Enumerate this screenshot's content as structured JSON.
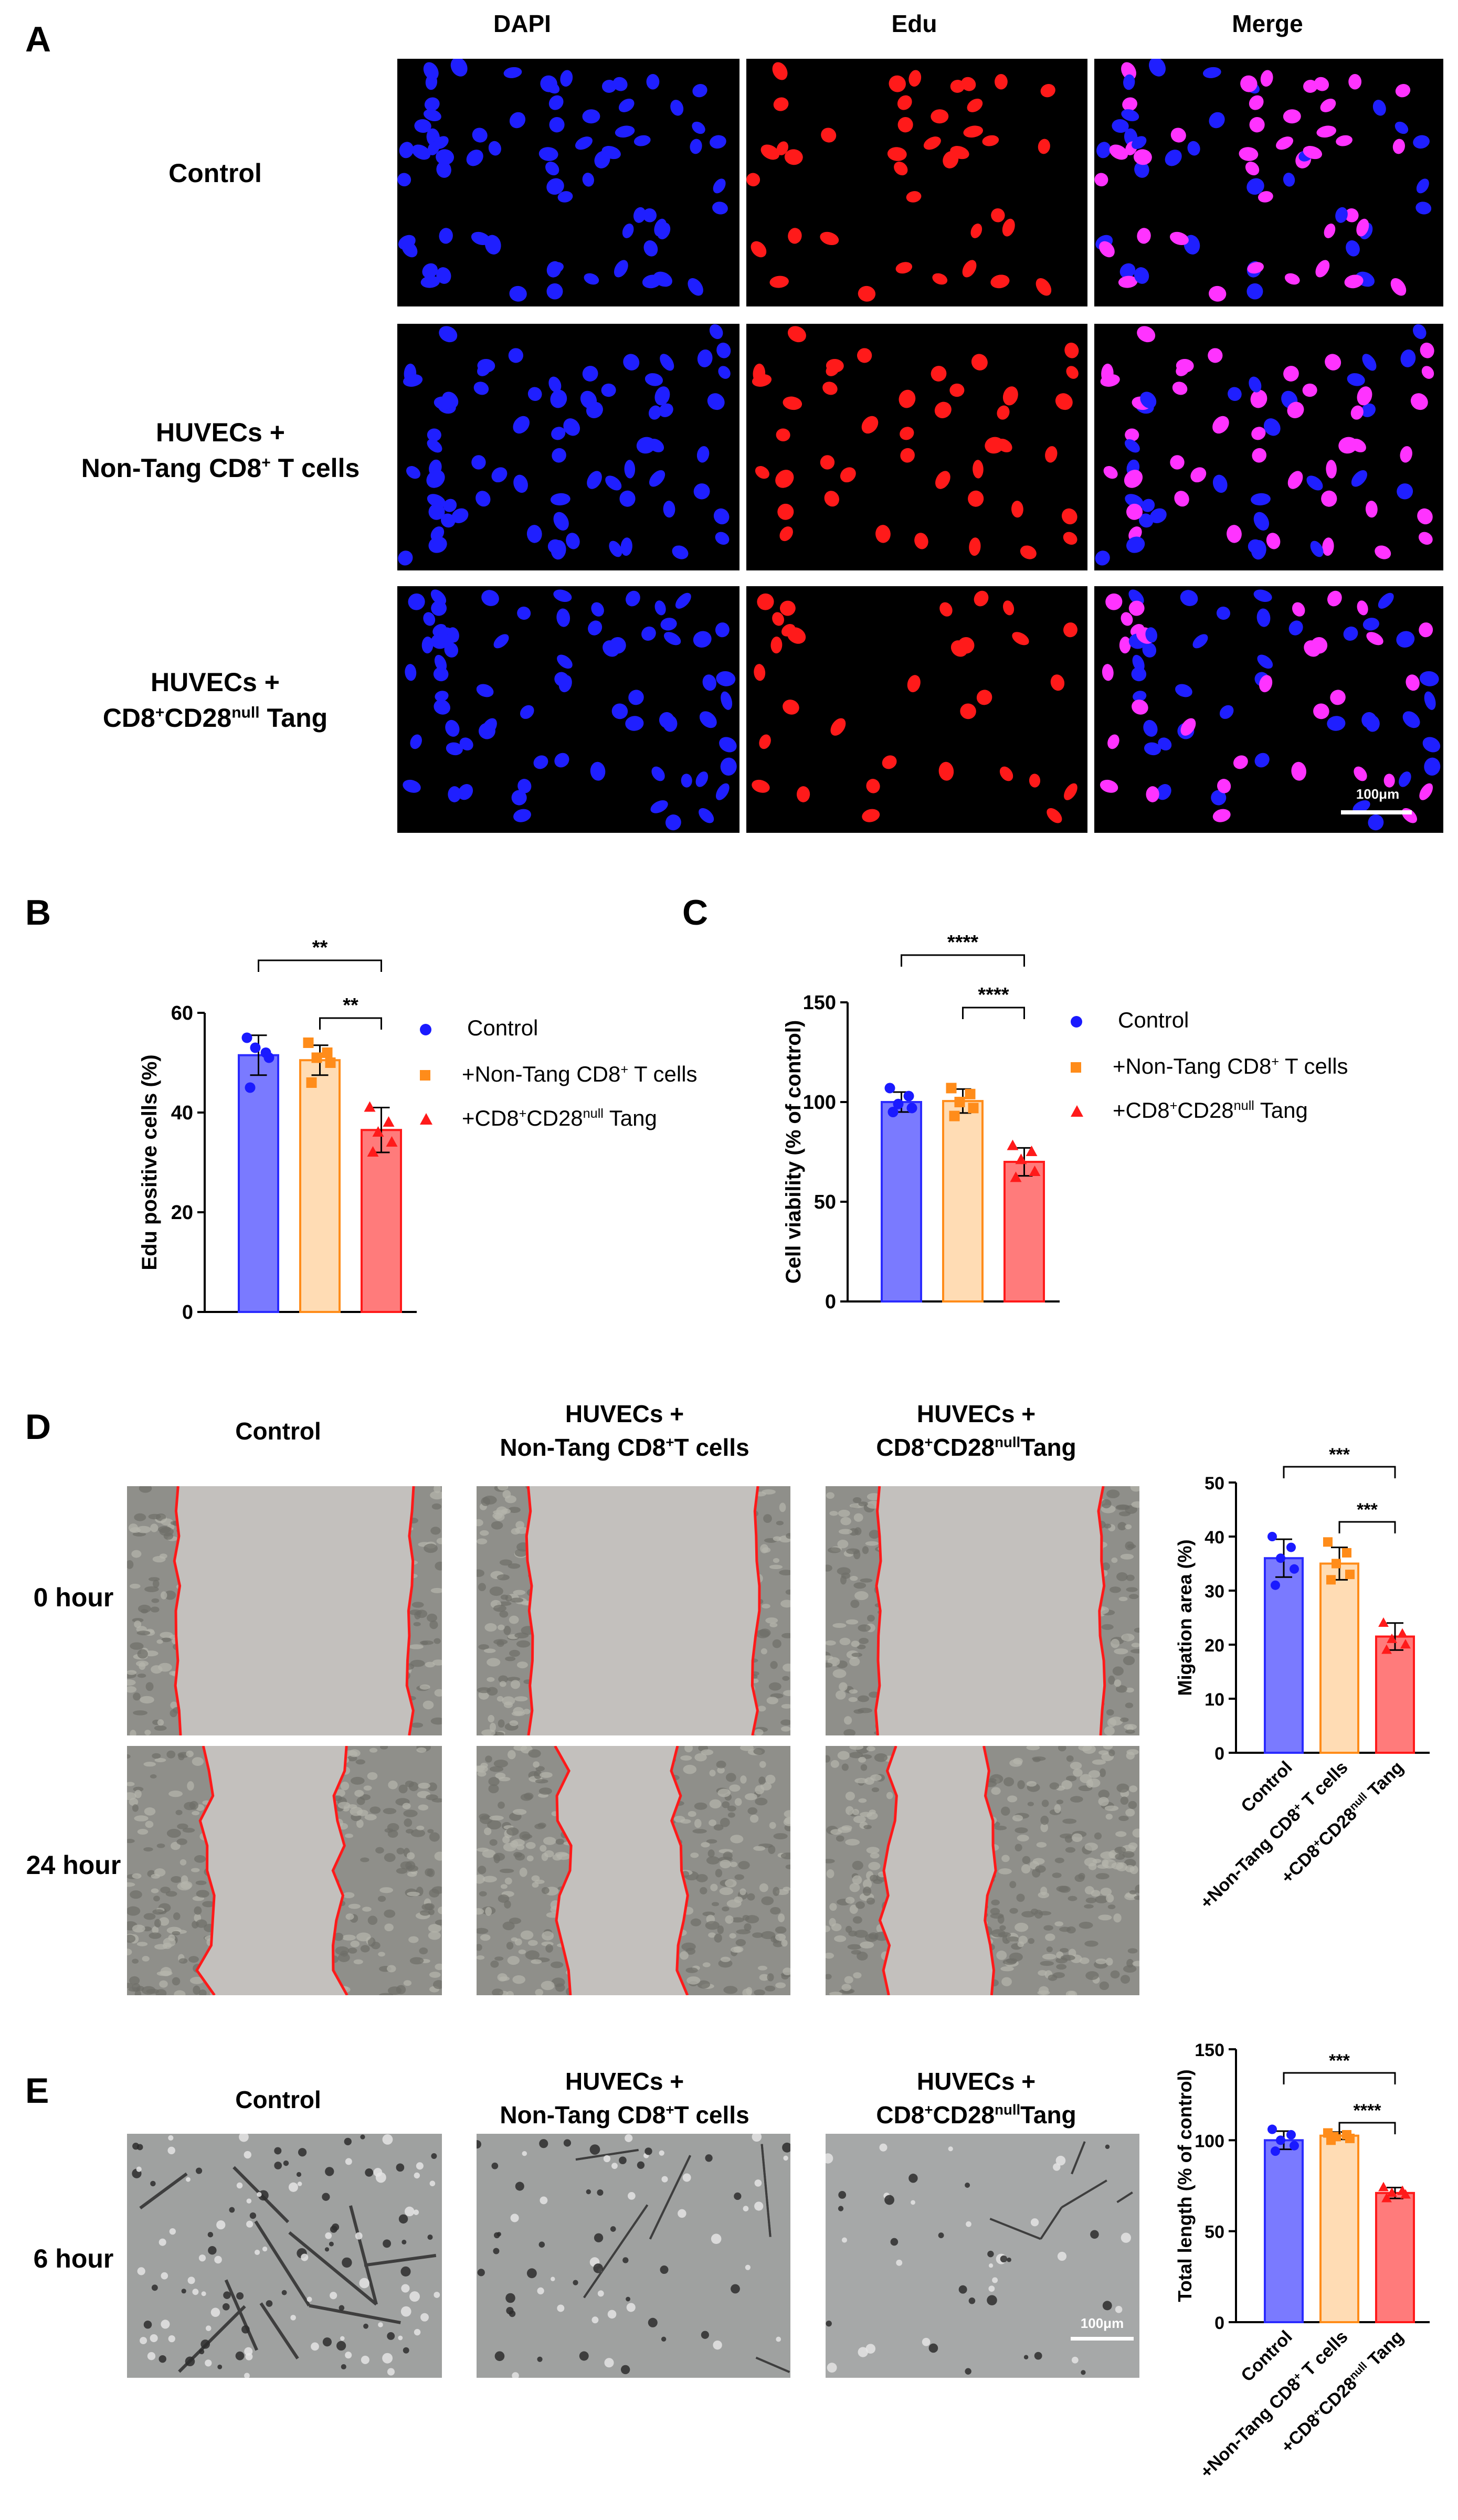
{
  "panels": {
    "A": "A",
    "B": "B",
    "C": "C",
    "D": "D",
    "E": "E"
  },
  "panel_a": {
    "columns": [
      "DAPI",
      "Edu",
      "Merge"
    ],
    "rows": [
      {
        "line1": "Control",
        "line2": ""
      },
      {
        "line1": "HUVECs +",
        "line2_pre": "Non-Tang CD8",
        "line2_sup": "+",
        "line2_post": " T cells"
      },
      {
        "line1": "HUVECs +",
        "line2_pre": "CD8",
        "line2_sup": "+",
        "line2_mid": "CD28",
        "line2_sup2": "null",
        "line2_post": " Tang"
      }
    ],
    "scale_bar": "100μm",
    "colors": {
      "dapi": "#1f1fff",
      "edu": "#ff1a1a",
      "merge": "#ff33ff",
      "background": "#000000"
    }
  },
  "panel_d": {
    "columns": [
      {
        "line1": "Control"
      },
      {
        "line1": "HUVECs +",
        "line2": "Non-Tang CD8+T cells"
      },
      {
        "line1": "HUVECs +",
        "line2": "CD8+CD28nullTang"
      }
    ],
    "col2_line2_pre": "Non-Tang CD8",
    "col2_line2_sup": "+",
    "col2_line2_post": "T cells",
    "col3_line2_pre": "CD8",
    "col3_line2_sup": "+",
    "col3_line2_mid": "CD28",
    "col3_line2_sup2": "null",
    "col3_line2_post": "Tang",
    "rows": [
      "0 hour",
      "24 hour"
    ]
  },
  "panel_e": {
    "row": "6 hour",
    "scale_bar": "100μm"
  },
  "legend": {
    "control": "Control",
    "nontang_pre": "+Non-Tang CD8",
    "nontang_sup": "+",
    "nontang_post": " T cells",
    "tang_pre": "+CD8",
    "tang_sup": "+",
    "tang_mid": "CD28",
    "tang_sup2": "null",
    "tang_post": " Tang"
  },
  "chart_data": [
    {
      "panel": "B",
      "type": "bar",
      "categories": [
        "Control",
        "+Non-Tang CD8+ T cells",
        "+CD8+CD28null Tang"
      ],
      "values": [
        51.5,
        50.5,
        36.5
      ],
      "errors": [
        4.0,
        3.0,
        4.5
      ],
      "points": [
        [
          55,
          52,
          53,
          51,
          45
        ],
        [
          54,
          52,
          51,
          50,
          46
        ],
        [
          41,
          38,
          36,
          34,
          32
        ]
      ],
      "ylabel": "Edu positive cells (%)",
      "ylim": [
        0,
        60
      ],
      "yticks": [
        0,
        20,
        40,
        60
      ],
      "significance": [
        {
          "from": 0,
          "to": 2,
          "label": "**"
        },
        {
          "from": 1,
          "to": 2,
          "label": "**"
        }
      ],
      "legend_position": "right"
    },
    {
      "panel": "C",
      "type": "bar",
      "categories": [
        "Control",
        "+Non-Tang CD8+ T cells",
        "+CD8+CD28null Tang"
      ],
      "values": [
        100,
        100.5,
        70
      ],
      "errors": [
        5,
        6,
        7
      ],
      "points": [
        [
          107,
          103,
          99,
          97,
          95
        ],
        [
          107,
          104,
          100,
          97,
          93
        ],
        [
          78,
          75,
          71,
          65,
          62
        ]
      ],
      "ylabel": "Cell viability (% of control)",
      "ylim": [
        0,
        150
      ],
      "yticks": [
        0,
        50,
        100,
        150
      ],
      "significance": [
        {
          "from": 0,
          "to": 2,
          "label": "****"
        },
        {
          "from": 1,
          "to": 2,
          "label": "****"
        }
      ],
      "legend_position": "right"
    },
    {
      "panel": "D",
      "type": "bar",
      "categories": [
        "Control",
        "+Non-Tang CD8+ T cells",
        "+CD8+CD28null Tang"
      ],
      "values": [
        36,
        35,
        21.5
      ],
      "errors": [
        3.5,
        3.0,
        2.5
      ],
      "points": [
        [
          40,
          38,
          36,
          34,
          31
        ],
        [
          39,
          37,
          35,
          33,
          32
        ],
        [
          24,
          22,
          21,
          20,
          19
        ]
      ],
      "ylabel": "Migation area (%)",
      "ylim": [
        0,
        50
      ],
      "yticks": [
        0,
        10,
        20,
        30,
        40,
        50
      ],
      "significance": [
        {
          "from": 0,
          "to": 2,
          "label": "***"
        },
        {
          "from": 1,
          "to": 2,
          "label": "***"
        }
      ]
    },
    {
      "panel": "E",
      "type": "bar",
      "categories": [
        "Control",
        "+Non-Tang CD8+ T cells",
        "+CD8+CD28null Tang"
      ],
      "values": [
        100,
        102.5,
        71
      ],
      "errors": [
        5,
        2,
        3
      ],
      "points": [
        [
          106,
          103,
          100,
          97,
          94
        ],
        [
          104,
          103,
          102,
          101,
          100
        ],
        [
          74,
          72,
          71,
          70,
          68
        ]
      ],
      "ylabel": "Total length (% of control)",
      "ylim": [
        0,
        150
      ],
      "yticks": [
        0,
        50,
        100,
        150
      ],
      "significance": [
        {
          "from": 0,
          "to": 2,
          "label": "***"
        },
        {
          "from": 1,
          "to": 2,
          "label": "****"
        }
      ]
    }
  ],
  "series_colors": {
    "fill": [
      "#7a7aff",
      "#ffdcb4",
      "#ff7b7b"
    ],
    "edge": [
      "#2b2bff",
      "#ff8c1a",
      "#ff1a1a"
    ],
    "marker": [
      "#1a1aff",
      "#ff8c1a",
      "#ff1a1a"
    ]
  }
}
